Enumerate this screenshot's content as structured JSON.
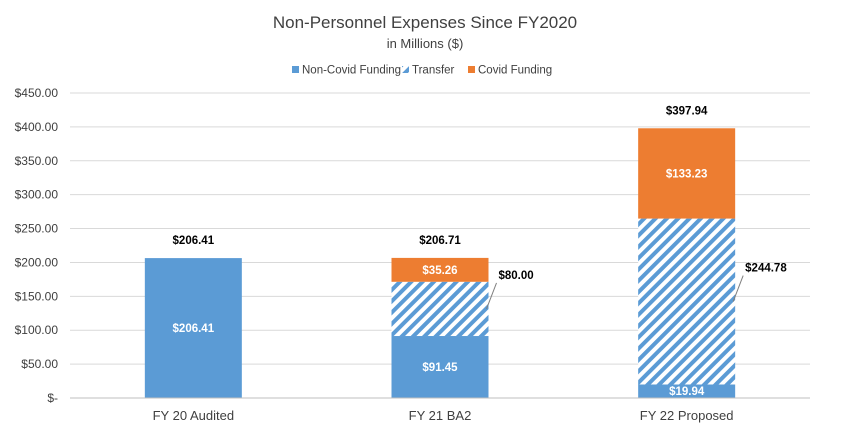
{
  "chart_data": {
    "type": "bar",
    "stacked": true,
    "title": "Non-Personnel Expenses Since FY2020",
    "subtitle": "in Millions ($)",
    "categories": [
      "FY 20 Audited",
      "FY 21 BA2",
      "FY 22 Proposed"
    ],
    "series": [
      {
        "name": "Non-Covid Funding",
        "values": [
          206.41,
          91.45,
          19.94
        ],
        "labels": [
          "$206.41",
          "$91.45",
          "$19.94"
        ],
        "color": "#5B9BD5",
        "pattern": "solid"
      },
      {
        "name": "Transfer",
        "values": [
          0,
          80.0,
          244.78
        ],
        "labels": [
          "",
          "$80.00",
          "$244.78"
        ],
        "color": "#5B9BD5",
        "pattern": "diagonal-stripes"
      },
      {
        "name": "Covid Funding",
        "values": [
          0,
          35.26,
          133.23
        ],
        "labels": [
          "",
          "$35.26",
          "$133.23"
        ],
        "color": "#ED7D31",
        "pattern": "solid"
      }
    ],
    "totals": [
      206.41,
      206.71,
      397.94
    ],
    "total_labels": [
      "$206.41",
      "$206.71",
      "$397.94"
    ],
    "ylim": [
      0,
      450
    ],
    "yticks": [
      0,
      50,
      100,
      150,
      200,
      250,
      300,
      350,
      400,
      450
    ],
    "ytick_labels": [
      "$-",
      "$50.00",
      "$100.00",
      "$150.00",
      "$200.00",
      "$250.00",
      "$300.00",
      "$350.00",
      "$400.00",
      "$450.00"
    ],
    "grid": true,
    "legend_position": "top"
  }
}
